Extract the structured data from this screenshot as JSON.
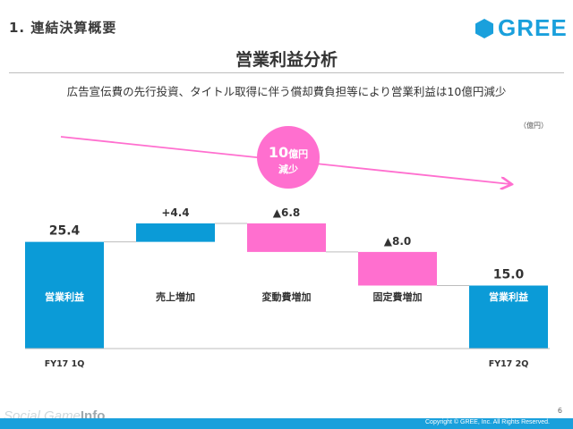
{
  "header": {
    "section_title": "1. 連結決算概要",
    "logo_text": "GREE",
    "slide_title": "営業利益分析",
    "subtitle": "広告宣伝費の先行投資、タイトル取得に伴う償却費負担等により営業利益は10億円減少"
  },
  "chart_data": {
    "type": "bar",
    "unit_label": "（億円）",
    "categories": [
      "営業利益",
      "売上増加",
      "変動費増加",
      "固定費増加",
      "営業利益"
    ],
    "period_labels": [
      "FY17 1Q",
      "",
      "",
      "",
      "FY17 2Q"
    ],
    "value_labels": [
      "25.4",
      "+4.4",
      "▲6.8",
      "▲8.0",
      "15.0"
    ],
    "bars": [
      {
        "kind": "total",
        "start": 0,
        "end": 25.4
      },
      {
        "kind": "increase",
        "start": 25.4,
        "end": 29.8
      },
      {
        "kind": "decrease",
        "start": 29.8,
        "end": 23.0
      },
      {
        "kind": "decrease",
        "start": 23.0,
        "end": 15.0
      },
      {
        "kind": "total",
        "start": 0,
        "end": 15.0
      }
    ],
    "ylim": [
      0,
      30
    ],
    "annotation": {
      "value": "10",
      "unit": "億円",
      "text": "減少"
    },
    "colors": {
      "total": "#0b9bd7",
      "increase": "#0b9bd7",
      "decrease": "#ff6fcf",
      "arrow": "#ff6fcf",
      "connector": "#bdbdbd"
    }
  },
  "footer": {
    "page_number": "6",
    "watermark_a": "Social Game",
    "watermark_b": "Info",
    "copyright": "Copyright © GREE, Inc. All Rights Reserved."
  }
}
